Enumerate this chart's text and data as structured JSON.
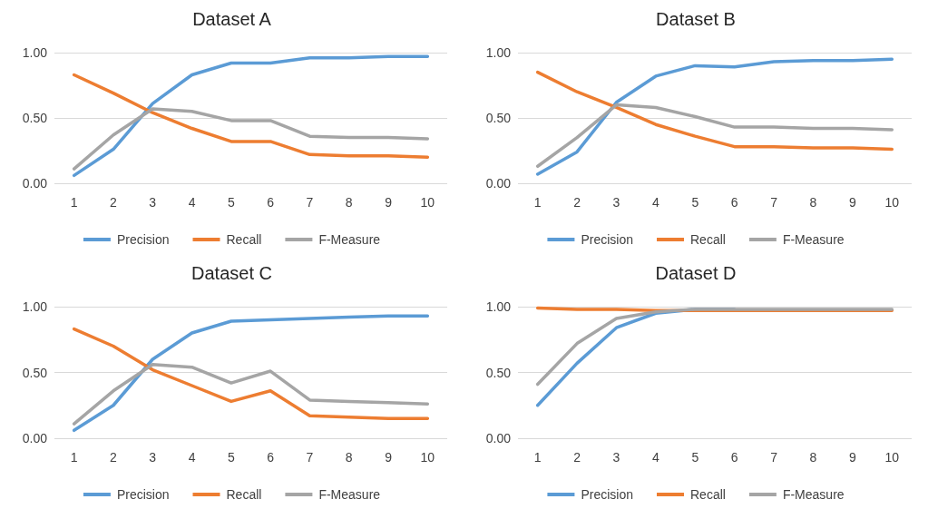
{
  "chart_data": [
    {
      "type": "line",
      "title": "Dataset A",
      "categories": [
        "1",
        "2",
        "3",
        "4",
        "5",
        "6",
        "7",
        "8",
        "9",
        "10"
      ],
      "ylim": [
        0,
        1
      ],
      "yticks": [
        {
          "value": 0,
          "label": "0.00"
        },
        {
          "value": 0.5,
          "label": "0.50"
        },
        {
          "value": 1,
          "label": "1.00"
        }
      ],
      "grid": "y",
      "legend": "bottom",
      "marker": "none",
      "series": [
        {
          "name": "Precision",
          "color": "#5b9bd5",
          "values": [
            0.06,
            0.26,
            0.61,
            0.83,
            0.92,
            0.92,
            0.96,
            0.96,
            0.97,
            0.97
          ]
        },
        {
          "name": "Recall",
          "color": "#ed7d31",
          "values": [
            0.83,
            0.69,
            0.54,
            0.42,
            0.32,
            0.32,
            0.22,
            0.21,
            0.21,
            0.2
          ]
        },
        {
          "name": "F-Measure",
          "color": "#a5a5a5",
          "values": [
            0.11,
            0.37,
            0.57,
            0.55,
            0.48,
            0.48,
            0.36,
            0.35,
            0.35,
            0.34
          ]
        }
      ]
    },
    {
      "type": "line",
      "title": "Dataset B",
      "categories": [
        "1",
        "2",
        "3",
        "4",
        "5",
        "6",
        "7",
        "8",
        "9",
        "10"
      ],
      "ylim": [
        0,
        1
      ],
      "yticks": [
        {
          "value": 0,
          "label": "0.00"
        },
        {
          "value": 0.5,
          "label": "0.50"
        },
        {
          "value": 1,
          "label": "1.00"
        }
      ],
      "grid": "y",
      "legend": "bottom",
      "marker": "none",
      "series": [
        {
          "name": "Precision",
          "color": "#5b9bd5",
          "values": [
            0.07,
            0.24,
            0.62,
            0.82,
            0.9,
            0.89,
            0.93,
            0.94,
            0.94,
            0.95
          ]
        },
        {
          "name": "Recall",
          "color": "#ed7d31",
          "values": [
            0.85,
            0.7,
            0.58,
            0.45,
            0.36,
            0.28,
            0.28,
            0.27,
            0.27,
            0.26
          ]
        },
        {
          "name": "F-Measure",
          "color": "#a5a5a5",
          "values": [
            0.13,
            0.35,
            0.6,
            0.58,
            0.51,
            0.43,
            0.43,
            0.42,
            0.42,
            0.41
          ]
        }
      ]
    },
    {
      "type": "line",
      "title": "Dataset C",
      "categories": [
        "1",
        "2",
        "3",
        "4",
        "5",
        "6",
        "7",
        "8",
        "9",
        "10"
      ],
      "ylim": [
        0,
        1
      ],
      "yticks": [
        {
          "value": 0,
          "label": "0.00"
        },
        {
          "value": 0.5,
          "label": "0.50"
        },
        {
          "value": 1,
          "label": "1.00"
        }
      ],
      "grid": "y",
      "legend": "bottom",
      "marker": "none",
      "series": [
        {
          "name": "Precision",
          "color": "#5b9bd5",
          "values": [
            0.06,
            0.25,
            0.6,
            0.8,
            0.89,
            0.9,
            0.91,
            0.92,
            0.93,
            0.93
          ]
        },
        {
          "name": "Recall",
          "color": "#ed7d31",
          "values": [
            0.83,
            0.7,
            0.52,
            0.4,
            0.28,
            0.36,
            0.17,
            0.16,
            0.15,
            0.15
          ]
        },
        {
          "name": "F-Measure",
          "color": "#a5a5a5",
          "values": [
            0.11,
            0.36,
            0.56,
            0.54,
            0.42,
            0.51,
            0.29,
            0.28,
            0.27,
            0.26
          ]
        }
      ]
    },
    {
      "type": "line",
      "title": "Dataset D",
      "categories": [
        "1",
        "2",
        "3",
        "4",
        "5",
        "6",
        "7",
        "8",
        "9",
        "10"
      ],
      "ylim": [
        0,
        1
      ],
      "yticks": [
        {
          "value": 0,
          "label": "0.00"
        },
        {
          "value": 0.5,
          "label": "0.50"
        },
        {
          "value": 1,
          "label": "1.00"
        }
      ],
      "grid": "y",
      "legend": "bottom",
      "marker": "none",
      "series": [
        {
          "name": "Precision",
          "color": "#5b9bd5",
          "values": [
            0.25,
            0.57,
            0.84,
            0.95,
            0.98,
            0.98,
            null,
            null,
            null,
            null
          ]
        },
        {
          "name": "Recall",
          "color": "#ed7d31",
          "values": [
            0.99,
            0.98,
            0.98,
            0.97,
            0.97,
            0.97,
            0.97,
            0.97,
            0.97,
            0.97
          ]
        },
        {
          "name": "F-Measure",
          "color": "#a5a5a5",
          "values": [
            0.41,
            0.72,
            0.91,
            0.96,
            0.98,
            0.98,
            0.98,
            0.98,
            0.98,
            0.98
          ]
        }
      ]
    }
  ]
}
